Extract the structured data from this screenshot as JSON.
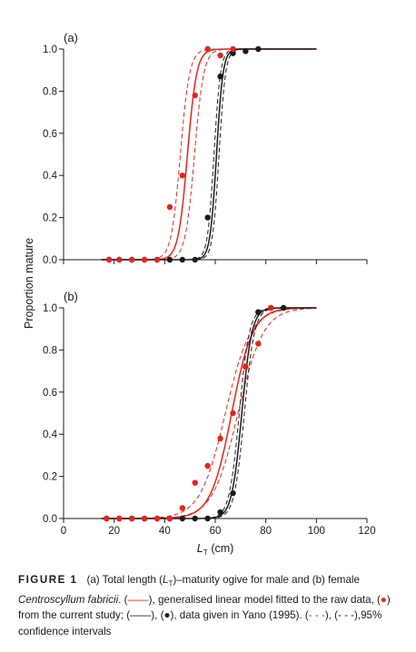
{
  "chart_data": [
    {
      "type": "line",
      "panel_label": "(a)",
      "ylabel": "Proportion mature",
      "xlim": [
        0,
        120
      ],
      "ylim": [
        0,
        1
      ],
      "yticks": [
        "0.0",
        "0.2",
        "0.4",
        "0.6",
        "0.8",
        "1.0"
      ],
      "xticks": [],
      "grid": false,
      "series": [
        {
          "color": "#e8231a",
          "style": "points",
          "x": [
            18,
            22,
            27,
            32,
            37,
            42,
            47,
            52,
            57,
            62,
            67
          ],
          "y": [
            0,
            0,
            0,
            0,
            0,
            0.25,
            0.4,
            0.78,
            1.0,
            0.97,
            1.0
          ]
        },
        {
          "color": "#1a1a1a",
          "style": "points",
          "x": [
            18,
            22,
            27,
            32,
            37,
            42,
            47,
            52,
            57,
            62,
            67,
            72,
            77
          ],
          "y": [
            0,
            0,
            0,
            0,
            0,
            0,
            0,
            0,
            0.2,
            0.87,
            0.98,
            0.99,
            1.0
          ]
        },
        {
          "color": "#e8231a",
          "style": "glm-fit",
          "midpoint": 49,
          "slope": 0.55,
          "ci_lower": {
            "midpoint": 46.2,
            "slope": 0.55
          },
          "ci_upper": {
            "midpoint": 51.8,
            "slope": 0.55
          }
        },
        {
          "color": "#1a1a1a",
          "style": "glm-fit",
          "midpoint": 60.5,
          "slope": 0.78,
          "ci_lower": {
            "midpoint": 59.5,
            "slope": 0.78
          },
          "ci_upper": {
            "midpoint": 61.5,
            "slope": 0.78
          }
        }
      ]
    },
    {
      "type": "line",
      "panel_label": "(b)",
      "ylabel": "Proportion mature",
      "xlabel": "L_T (cm)",
      "xlim": [
        0,
        120
      ],
      "ylim": [
        0,
        1
      ],
      "xticks": [
        "0",
        "20",
        "40",
        "60",
        "80",
        "100",
        "120"
      ],
      "yticks": [
        "0.0",
        "0.2",
        "0.4",
        "0.6",
        "0.8",
        "1.0"
      ],
      "grid": false,
      "series": [
        {
          "color": "#e8231a",
          "style": "points",
          "x": [
            17,
            22,
            27,
            32,
            37,
            42,
            47,
            52,
            57,
            62,
            67,
            72,
            77,
            82
          ],
          "y": [
            0,
            0,
            0,
            0,
            0,
            0,
            0.05,
            0.17,
            0.25,
            0.38,
            0.5,
            0.72,
            0.83,
            1.0
          ]
        },
        {
          "color": "#1a1a1a",
          "style": "points",
          "x": [
            17,
            22,
            27,
            32,
            37,
            42,
            47,
            52,
            57,
            62,
            67,
            72,
            77,
            82,
            87
          ],
          "y": [
            0,
            0,
            0,
            0,
            0,
            0,
            0,
            0,
            0,
            0.03,
            0.12,
            0.72,
            0.98,
            1.0,
            1.0
          ]
        },
        {
          "color": "#e8231a",
          "style": "glm-fit",
          "midpoint": 66.5,
          "slope": 0.24,
          "ci_lower": {
            "midpoint": 64,
            "slope": 0.2
          },
          "ci_upper": {
            "midpoint": 69,
            "slope": 0.2
          }
        },
        {
          "color": "#1a1a1a",
          "style": "glm-fit",
          "midpoint": 70.5,
          "slope": 0.5,
          "ci_lower": {
            "midpoint": 69.5,
            "slope": 0.5
          },
          "ci_upper": {
            "midpoint": 71.5,
            "slope": 0.5
          }
        }
      ]
    }
  ],
  "axis": {
    "ylabel": "Proportion mature",
    "xlabel_main": "L",
    "xlabel_sub": "T",
    "xlabel_unit": " (cm)"
  },
  "caption": {
    "figure_label": "FIGURE 1",
    "part1": "(a) Total length (",
    "lt_main": "L",
    "lt_sub": "T",
    "part2": ")–maturity ogive for male and (b) female ",
    "species": "Centroscyllum fabricii",
    "part3": ". (",
    "swatch_solid": "——",
    "part4": "), generalised linear model fitted to the raw data, (",
    "red_dot": "●",
    "part5": ") from the current study; (",
    "swatch_solid2": "——",
    "part6": "), (",
    "black_dot": "●",
    "part7": "), data given in Yano (1995). (",
    "swatch_dash_red": "- - -",
    "part8": "), (",
    "swatch_dash_black": "- - -",
    "part9": "),95% confidence intervals"
  },
  "colors": {
    "red": "#e8231a",
    "black": "#1a1a1a"
  }
}
